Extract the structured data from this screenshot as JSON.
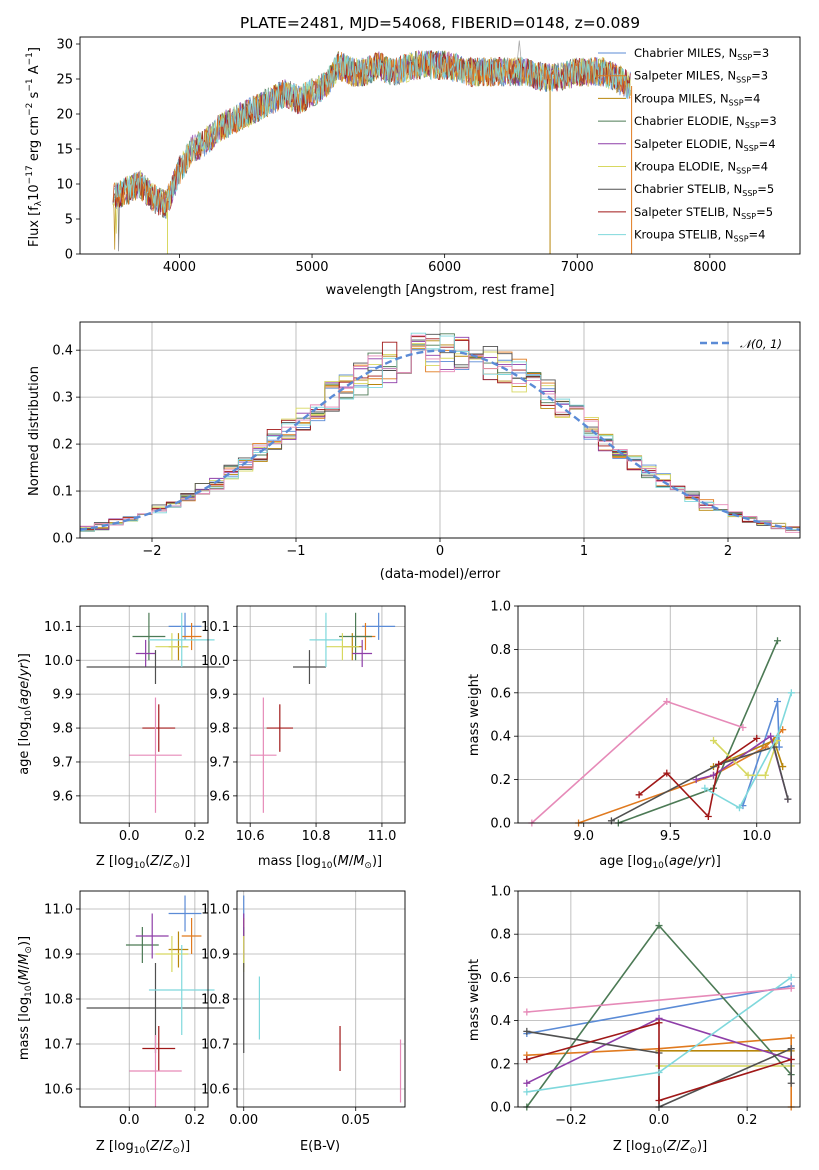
{
  "figure_title": "PLATE=2481, MJD=54068, FIBERID=0148, z=0.089",
  "colors": [
    "#5b8bd6",
    "#e07a1f",
    "#b8860b",
    "#4c7a55",
    "#8e3ea8",
    "#d7d860",
    "#505050",
    "#a01818",
    "#7fd8dc",
    "#e68ab8"
  ],
  "chart_data": [
    {
      "id": "spectrum",
      "type": "line",
      "xlabel": "wavelength [Angstrom, rest frame]",
      "ylabel": "Flux [f_λ 10^-17 erg cm^-2 s^-1 A^-1]",
      "xlim": [
        3250,
        8680
      ],
      "ylim": [
        0,
        31
      ],
      "xticks": [
        4000,
        5000,
        6000,
        7000,
        8000
      ],
      "yticks": [
        0,
        5,
        10,
        15,
        20,
        25,
        30
      ],
      "continuum": {
        "x": [
          3500,
          3600,
          3700,
          3800,
          3900,
          4000,
          4100,
          4200,
          4300,
          4400,
          4500,
          4600,
          4700,
          4800,
          4900,
          5000,
          5100,
          5200,
          5300,
          5400,
          5500,
          5600,
          5800,
          6000,
          6200,
          6400,
          6600,
          6800,
          7000,
          7200,
          7400
        ],
        "y": [
          8,
          9,
          10,
          8,
          7,
          12,
          15,
          16,
          18,
          19,
          20,
          21,
          22,
          23,
          22,
          23,
          24,
          27,
          26,
          26,
          27,
          26,
          27,
          27,
          26,
          26,
          26,
          25,
          26,
          26,
          24
        ]
      },
      "legend": [
        {
          "label": "Chabrier MILES",
          "nssp": "3"
        },
        {
          "label": "Salpeter MILES",
          "nssp": "3"
        },
        {
          "label": "Kroupa MILES",
          "nssp": "4"
        },
        {
          "label": "Chabrier ELODIE",
          "nssp": "3"
        },
        {
          "label": "Salpeter ELODIE",
          "nssp": "4"
        },
        {
          "label": "Kroupa ELODIE",
          "nssp": "4"
        },
        {
          "label": "Chabrier STELIB",
          "nssp": "5"
        },
        {
          "label": "Salpeter STELIB",
          "nssp": "5"
        },
        {
          "label": "Kroupa STELIB",
          "nssp": "4"
        }
      ],
      "grid": false
    },
    {
      "id": "residuals",
      "type": "line",
      "xlabel": "(data-model)/error",
      "ylabel": "Normed distribution",
      "xlim": [
        -2.5,
        2.5
      ],
      "ylim": [
        0,
        0.46
      ],
      "xticks": [
        -2,
        -1,
        0,
        1,
        2
      ],
      "yticks": [
        0.0,
        0.1,
        0.2,
        0.3,
        0.4
      ],
      "bin_width": 0.1,
      "legend": "𝒩(0, 1)",
      "legend_position": "top-right",
      "grid": true
    },
    {
      "id": "age_vs_Z",
      "type": "scatter",
      "xlabel": "Z [log10(Z/Z⊙)]",
      "ylabel": "age  [log10(age/yr)]",
      "xlim": [
        -0.15,
        0.24
      ],
      "ylim": [
        9.52,
        10.16
      ],
      "xticks": [
        0.0,
        0.2
      ],
      "yticks": [
        9.6,
        9.7,
        9.8,
        9.9,
        10.0,
        10.1
      ],
      "points": [
        {
          "x": 0.17,
          "y": 10.1,
          "xerr": 0.05,
          "yerr": 0.04
        },
        {
          "x": 0.19,
          "y": 10.07,
          "xerr": 0.03,
          "yerr": 0.04
        },
        {
          "x": 0.15,
          "y": 10.04,
          "xerr": 0.03,
          "yerr": 0.04
        },
        {
          "x": 0.06,
          "y": 10.07,
          "xerr": 0.05,
          "yerr": 0.07
        },
        {
          "x": 0.05,
          "y": 10.02,
          "xerr": 0.03,
          "yerr": 0.04
        },
        {
          "x": 0.13,
          "y": 10.04,
          "xerr": 0.05,
          "yerr": 0.04
        },
        {
          "x": 0.08,
          "y": 9.98,
          "xerr": 0.21,
          "yerr": 0.05
        },
        {
          "x": 0.09,
          "y": 9.8,
          "xerr": 0.05,
          "yerr": 0.07
        },
        {
          "x": 0.16,
          "y": 10.06,
          "xerr": 0.1,
          "yerr": 0.08
        },
        {
          "x": 0.08,
          "y": 9.72,
          "xerr": 0.08,
          "yerr": 0.17
        }
      ]
    },
    {
      "id": "age_vs_mass",
      "type": "scatter",
      "xlabel": "mass [log10(M/M⊙)]",
      "ylabel": "",
      "xlim": [
        10.56,
        11.07
      ],
      "ylim": [
        9.52,
        10.16
      ],
      "xticks": [
        10.6,
        10.8,
        11.0
      ],
      "yticks": [
        9.6,
        9.7,
        9.8,
        9.9,
        10.0,
        10.1
      ],
      "points": [
        {
          "x": 10.99,
          "y": 10.1,
          "xerr": 0.05,
          "yerr": 0.04
        },
        {
          "x": 10.95,
          "y": 10.07,
          "xerr": 0.03,
          "yerr": 0.04
        },
        {
          "x": 10.91,
          "y": 10.04,
          "xerr": 0.03,
          "yerr": 0.04
        },
        {
          "x": 10.92,
          "y": 10.07,
          "xerr": 0.05,
          "yerr": 0.07
        },
        {
          "x": 10.94,
          "y": 10.02,
          "xerr": 0.03,
          "yerr": 0.04
        },
        {
          "x": 10.88,
          "y": 10.04,
          "xerr": 0.05,
          "yerr": 0.04
        },
        {
          "x": 10.78,
          "y": 9.98,
          "xerr": 0.05,
          "yerr": 0.05
        },
        {
          "x": 10.69,
          "y": 9.8,
          "xerr": 0.04,
          "yerr": 0.07
        },
        {
          "x": 10.83,
          "y": 10.06,
          "xerr": 0.05,
          "yerr": 0.08
        },
        {
          "x": 10.64,
          "y": 9.72,
          "xerr": 0.04,
          "yerr": 0.17
        }
      ]
    },
    {
      "id": "weight_vs_age",
      "type": "line",
      "xlabel": "age  [log10(age/yr)]",
      "ylabel": "mass weight",
      "xlim": [
        8.62,
        10.25
      ],
      "ylim": [
        0,
        1.0
      ],
      "xticks": [
        9.0,
        9.5,
        10.0
      ],
      "yticks": [
        0.0,
        0.2,
        0.4,
        0.6,
        0.8,
        1.0
      ],
      "series": [
        {
          "x": [
            9.92,
            10.12,
            10.13
          ],
          "y": [
            0.08,
            0.56,
            0.35
          ]
        },
        {
          "x": [
            8.97,
            9.75,
            10.05,
            10.15
          ],
          "y": [
            0.0,
            0.22,
            0.35,
            0.43
          ]
        },
        {
          "x": [
            9.75,
            10.1,
            10.15
          ],
          "y": [
            0.26,
            0.38,
            0.26
          ]
        },
        {
          "x": [
            9.2,
            9.75,
            10.12
          ],
          "y": [
            0.0,
            0.16,
            0.84
          ]
        },
        {
          "x": [
            9.65,
            9.75,
            10.08,
            10.18
          ],
          "y": [
            0.2,
            0.22,
            0.4,
            0.11
          ]
        },
        {
          "x": [
            9.75,
            9.95,
            10.05,
            10.12
          ],
          "y": [
            0.38,
            0.22,
            0.22,
            0.38
          ]
        },
        {
          "x": [
            9.16,
            9.78,
            10.1,
            10.18
          ],
          "y": [
            0.01,
            0.27,
            0.35,
            0.11
          ]
        },
        {
          "x": [
            9.32,
            9.48,
            9.72,
            9.78,
            10.0
          ],
          "y": [
            0.13,
            0.23,
            0.03,
            0.27,
            0.39
          ]
        },
        {
          "x": [
            9.7,
            9.9,
            10.12,
            10.2
          ],
          "y": [
            0.16,
            0.07,
            0.4,
            0.6
          ]
        },
        {
          "x": [
            8.7,
            9.48,
            9.92
          ],
          "y": [
            0.0,
            0.56,
            0.44
          ]
        }
      ]
    },
    {
      "id": "mass_vs_Z",
      "type": "scatter",
      "xlabel": "Z [log10(Z/Z⊙)]",
      "ylabel": "mass [log10(M/M⊙)]",
      "xlim": [
        -0.15,
        0.24
      ],
      "ylim": [
        10.56,
        11.04
      ],
      "xticks": [
        0.0,
        0.2
      ],
      "yticks": [
        10.6,
        10.7,
        10.8,
        10.9,
        11.0
      ],
      "points": [
        {
          "x": 0.17,
          "y": 10.99,
          "xerr": 0.05,
          "yerr": 0.04
        },
        {
          "x": 0.19,
          "y": 10.94,
          "xerr": 0.03,
          "yerr": 0.04
        },
        {
          "x": 0.15,
          "y": 10.91,
          "xerr": 0.03,
          "yerr": 0.04
        },
        {
          "x": 0.04,
          "y": 10.92,
          "xerr": 0.05,
          "yerr": 0.04
        },
        {
          "x": 0.07,
          "y": 10.94,
          "xerr": 0.05,
          "yerr": 0.05
        },
        {
          "x": 0.13,
          "y": 10.9,
          "xerr": 0.05,
          "yerr": 0.04
        },
        {
          "x": 0.08,
          "y": 10.78,
          "xerr": 0.21,
          "yerr": 0.1
        },
        {
          "x": 0.09,
          "y": 10.69,
          "xerr": 0.05,
          "yerr": 0.05
        },
        {
          "x": 0.16,
          "y": 10.82,
          "xerr": 0.1,
          "yerr": 0.1
        },
        {
          "x": 0.08,
          "y": 10.64,
          "xerr": 0.08,
          "yerr": 0.08
        }
      ]
    },
    {
      "id": "mass_vs_ebv",
      "type": "scatter",
      "xlabel": "E(B-V)",
      "ylabel": "",
      "xlim": [
        -0.003,
        0.072
      ],
      "ylim": [
        10.56,
        11.04
      ],
      "xticks": [
        0.0,
        0.05
      ],
      "yticks": [
        10.6,
        10.7,
        10.8,
        10.9,
        11.0
      ],
      "points": [
        {
          "x": 0.0,
          "y": 10.99,
          "yerr": 0.04
        },
        {
          "x": 0.0,
          "y": 10.94,
          "yerr": 0.04
        },
        {
          "x": 0.0,
          "y": 10.91,
          "yerr": 0.04
        },
        {
          "x": 0.0,
          "y": 10.92,
          "yerr": 0.04
        },
        {
          "x": 0.0,
          "y": 10.94,
          "yerr": 0.05
        },
        {
          "x": 0.0,
          "y": 10.9,
          "yerr": 0.04
        },
        {
          "x": 0.0,
          "y": 10.78,
          "yerr": 0.1
        },
        {
          "x": 0.043,
          "y": 10.69,
          "yerr": 0.05
        },
        {
          "x": 0.007,
          "y": 10.78,
          "yerr": 0.07
        },
        {
          "x": 0.07,
          "y": 10.64,
          "yerr": 0.07
        }
      ]
    },
    {
      "id": "weight_vs_Z",
      "type": "line",
      "xlabel": "Z [log10(Z/Z⊙)]",
      "ylabel": "mass weight",
      "xlim": [
        -0.32,
        0.32
      ],
      "ylim": [
        0,
        1.0
      ],
      "xticks": [
        -0.2,
        0.0,
        0.2
      ],
      "yticks": [
        0.0,
        0.2,
        0.4,
        0.6,
        0.8,
        1.0
      ],
      "series": [
        {
          "x": [
            -0.3,
            0.3
          ],
          "y": [
            0.34,
            0.56
          ]
        },
        {
          "x": [
            -0.3,
            0.0,
            0.3,
            0.3
          ],
          "y": [
            0.24,
            0.27,
            0.32,
            0.0
          ]
        },
        {
          "x": [
            0.0,
            0.3
          ],
          "y": [
            0.26,
            0.26
          ]
        },
        {
          "x": [
            -0.3,
            0.0,
            0.3
          ],
          "y": [
            0.0,
            0.84,
            0.15
          ]
        },
        {
          "x": [
            -0.3,
            0.0,
            0.3
          ],
          "y": [
            0.11,
            0.41,
            0.22
          ]
        },
        {
          "x": [
            0.0,
            0.3
          ],
          "y": [
            0.19,
            0.19
          ]
        },
        {
          "x": [
            -0.3,
            0.0,
            0.0,
            0.3,
            0.3
          ],
          "y": [
            0.35,
            0.25,
            0.0,
            0.27,
            0.11
          ]
        },
        {
          "x": [
            -0.3,
            0.0,
            0.0,
            0.3
          ],
          "y": [
            0.22,
            0.39,
            0.03,
            0.22
          ]
        },
        {
          "x": [
            -0.3,
            0.0,
            0.3
          ],
          "y": [
            0.07,
            0.16,
            0.6
          ]
        },
        {
          "x": [
            -0.3,
            0.3
          ],
          "y": [
            0.44,
            0.55
          ]
        }
      ]
    }
  ]
}
